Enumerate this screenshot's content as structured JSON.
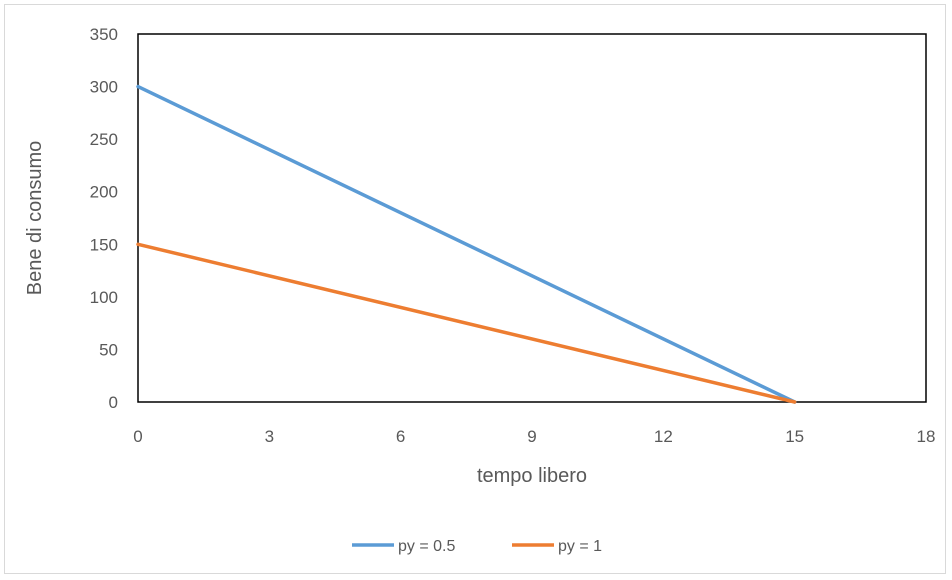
{
  "chart_data": {
    "type": "line",
    "title": "",
    "xlabel": "tempo libero",
    "ylabel": "Bene di consumo",
    "xlim": [
      0,
      18
    ],
    "ylim": [
      0,
      350
    ],
    "xticks": [
      0,
      3,
      6,
      9,
      12,
      15,
      18
    ],
    "yticks": [
      0,
      50,
      100,
      150,
      200,
      250,
      300,
      350
    ],
    "grid": false,
    "legend_position": "bottom",
    "series": [
      {
        "name": "py = 0.5",
        "color": "#5b9bd5",
        "points": [
          [
            0,
            300
          ],
          [
            15,
            0
          ]
        ]
      },
      {
        "name": "py = 1",
        "color": "#ed7d31",
        "points": [
          [
            0,
            150
          ],
          [
            15,
            0
          ]
        ]
      }
    ]
  }
}
